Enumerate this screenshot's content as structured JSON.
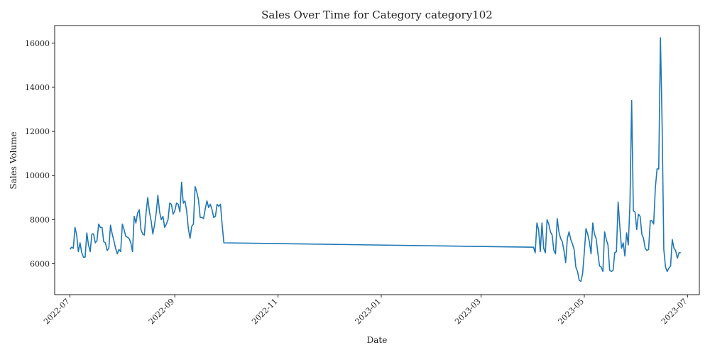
{
  "chart_data": {
    "type": "line",
    "title": "Sales Over Time for Category category102",
    "xlabel": "Date",
    "ylabel": "Sales Volume",
    "xlim": [
      "2022-06-22",
      "2023-07-08"
    ],
    "ylim": [
      4600,
      16800
    ],
    "grid": false,
    "x_ticks": [
      "2022-07",
      "2022-09",
      "2022-11",
      "2023-01",
      "2023-03",
      "2023-05",
      "2023-07"
    ],
    "y_ticks": [
      6000,
      8000,
      10000,
      12000,
      14000,
      16000
    ],
    "series": [
      {
        "color": "#1f77b4",
        "points": [
          [
            "2022-07-01",
            6650
          ],
          [
            "2022-07-02",
            6750
          ],
          [
            "2022-07-03",
            6700
          ],
          [
            "2022-07-04",
            7650
          ],
          [
            "2022-07-05",
            7300
          ],
          [
            "2022-07-06",
            6550
          ],
          [
            "2022-07-07",
            6950
          ],
          [
            "2022-07-08",
            6500
          ],
          [
            "2022-07-09",
            6300
          ],
          [
            "2022-07-10",
            6300
          ],
          [
            "2022-07-11",
            7400
          ],
          [
            "2022-07-12",
            6850
          ],
          [
            "2022-07-13",
            6550
          ],
          [
            "2022-07-14",
            7350
          ],
          [
            "2022-07-15",
            7350
          ],
          [
            "2022-07-16",
            6950
          ],
          [
            "2022-07-17",
            7050
          ],
          [
            "2022-07-18",
            7800
          ],
          [
            "2022-07-19",
            7650
          ],
          [
            "2022-07-20",
            7650
          ],
          [
            "2022-07-21",
            7000
          ],
          [
            "2022-07-22",
            6950
          ],
          [
            "2022-07-23",
            6600
          ],
          [
            "2022-07-24",
            6700
          ],
          [
            "2022-07-25",
            7750
          ],
          [
            "2022-07-26",
            7350
          ],
          [
            "2022-07-27",
            7050
          ],
          [
            "2022-07-28",
            6700
          ],
          [
            "2022-07-29",
            6450
          ],
          [
            "2022-07-30",
            6650
          ],
          [
            "2022-07-31",
            6550
          ],
          [
            "2022-08-01",
            7800
          ],
          [
            "2022-08-02",
            7550
          ],
          [
            "2022-08-03",
            7250
          ],
          [
            "2022-08-04",
            7200
          ],
          [
            "2022-08-05",
            7150
          ],
          [
            "2022-08-06",
            6950
          ],
          [
            "2022-08-07",
            6550
          ],
          [
            "2022-08-08",
            8150
          ],
          [
            "2022-08-09",
            7850
          ],
          [
            "2022-08-10",
            8300
          ],
          [
            "2022-08-11",
            8450
          ],
          [
            "2022-08-12",
            7550
          ],
          [
            "2022-08-13",
            7350
          ],
          [
            "2022-08-14",
            7300
          ],
          [
            "2022-08-15",
            8300
          ],
          [
            "2022-08-16",
            9000
          ],
          [
            "2022-08-17",
            8350
          ],
          [
            "2022-08-18",
            7950
          ],
          [
            "2022-08-19",
            7350
          ],
          [
            "2022-08-20",
            7750
          ],
          [
            "2022-08-21",
            8300
          ],
          [
            "2022-08-22",
            9100
          ],
          [
            "2022-08-23",
            8350
          ],
          [
            "2022-08-24",
            8000
          ],
          [
            "2022-08-25",
            8150
          ],
          [
            "2022-08-26",
            7650
          ],
          [
            "2022-08-27",
            7800
          ],
          [
            "2022-08-28",
            8000
          ],
          [
            "2022-08-29",
            8750
          ],
          [
            "2022-08-30",
            8700
          ],
          [
            "2022-08-31",
            8250
          ],
          [
            "2022-09-01",
            8400
          ],
          [
            "2022-09-02",
            8750
          ],
          [
            "2022-09-03",
            8700
          ],
          [
            "2022-09-04",
            8350
          ],
          [
            "2022-09-05",
            9700
          ],
          [
            "2022-09-06",
            8750
          ],
          [
            "2022-09-07",
            8850
          ],
          [
            "2022-09-08",
            8400
          ],
          [
            "2022-09-09",
            7600
          ],
          [
            "2022-09-10",
            7150
          ],
          [
            "2022-09-11",
            7700
          ],
          [
            "2022-09-12",
            7800
          ],
          [
            "2022-09-13",
            9500
          ],
          [
            "2022-09-14",
            9250
          ],
          [
            "2022-09-15",
            8900
          ],
          [
            "2022-09-16",
            8100
          ],
          [
            "2022-09-17",
            8100
          ],
          [
            "2022-09-18",
            8050
          ],
          [
            "2022-09-19",
            8500
          ],
          [
            "2022-09-20",
            8850
          ],
          [
            "2022-09-21",
            8550
          ],
          [
            "2022-09-22",
            8700
          ],
          [
            "2022-09-23",
            8450
          ],
          [
            "2022-09-24",
            8100
          ],
          [
            "2022-09-25",
            8150
          ],
          [
            "2022-09-26",
            8700
          ],
          [
            "2022-09-27",
            8600
          ],
          [
            "2022-09-28",
            8700
          ],
          [
            "2022-09-29",
            7750
          ],
          [
            "2022-09-30",
            6950
          ],
          [
            "2023-04-01",
            6750
          ],
          [
            "2023-04-02",
            6500
          ],
          [
            "2023-04-03",
            7850
          ],
          [
            "2023-04-04",
            7550
          ],
          [
            "2023-04-05",
            6550
          ],
          [
            "2023-04-06",
            7850
          ],
          [
            "2023-04-07",
            6700
          ],
          [
            "2023-04-08",
            6500
          ],
          [
            "2023-04-09",
            8000
          ],
          [
            "2023-04-10",
            7800
          ],
          [
            "2023-04-11",
            7450
          ],
          [
            "2023-04-12",
            7300
          ],
          [
            "2023-04-13",
            6600
          ],
          [
            "2023-04-14",
            6450
          ],
          [
            "2023-04-15",
            8050
          ],
          [
            "2023-04-16",
            7450
          ],
          [
            "2023-04-17",
            7150
          ],
          [
            "2023-04-18",
            7000
          ],
          [
            "2023-04-19",
            6600
          ],
          [
            "2023-04-20",
            6050
          ],
          [
            "2023-04-21",
            7150
          ],
          [
            "2023-04-22",
            7450
          ],
          [
            "2023-04-23",
            7100
          ],
          [
            "2023-04-24",
            6900
          ],
          [
            "2023-04-25",
            6650
          ],
          [
            "2023-04-26",
            5850
          ],
          [
            "2023-04-27",
            5650
          ],
          [
            "2023-04-28",
            5250
          ],
          [
            "2023-04-29",
            5200
          ],
          [
            "2023-04-30",
            5550
          ],
          [
            "2023-05-01",
            6500
          ],
          [
            "2023-05-02",
            7600
          ],
          [
            "2023-05-03",
            7350
          ],
          [
            "2023-05-04",
            7000
          ],
          [
            "2023-05-05",
            6450
          ],
          [
            "2023-05-06",
            7850
          ],
          [
            "2023-05-07",
            7350
          ],
          [
            "2023-05-08",
            7150
          ],
          [
            "2023-05-09",
            6500
          ],
          [
            "2023-05-10",
            5900
          ],
          [
            "2023-05-11",
            5850
          ],
          [
            "2023-05-12",
            5650
          ],
          [
            "2023-05-13",
            7450
          ],
          [
            "2023-05-14",
            7100
          ],
          [
            "2023-05-15",
            6850
          ],
          [
            "2023-05-16",
            5700
          ],
          [
            "2023-05-17",
            5650
          ],
          [
            "2023-05-18",
            5700
          ],
          [
            "2023-05-19",
            6500
          ],
          [
            "2023-05-20",
            6550
          ],
          [
            "2023-05-21",
            8800
          ],
          [
            "2023-05-22",
            7700
          ],
          [
            "2023-05-23",
            6700
          ],
          [
            "2023-05-24",
            6950
          ],
          [
            "2023-05-25",
            6350
          ],
          [
            "2023-05-26",
            7400
          ],
          [
            "2023-05-27",
            6850
          ],
          [
            "2023-05-28",
            8750
          ],
          [
            "2023-05-29",
            13400
          ],
          [
            "2023-05-30",
            8400
          ],
          [
            "2023-05-31",
            8350
          ],
          [
            "2023-06-01",
            7550
          ],
          [
            "2023-06-02",
            8250
          ],
          [
            "2023-06-03",
            8150
          ],
          [
            "2023-06-04",
            7350
          ],
          [
            "2023-06-05",
            7150
          ],
          [
            "2023-06-06",
            6700
          ],
          [
            "2023-06-07",
            6600
          ],
          [
            "2023-06-08",
            6650
          ],
          [
            "2023-06-09",
            7950
          ],
          [
            "2023-06-10",
            7950
          ],
          [
            "2023-06-11",
            7800
          ],
          [
            "2023-06-12",
            9450
          ],
          [
            "2023-06-13",
            10300
          ],
          [
            "2023-06-14",
            10300
          ],
          [
            "2023-06-15",
            16250
          ],
          [
            "2023-06-16",
            12300
          ],
          [
            "2023-06-17",
            6650
          ],
          [
            "2023-06-18",
            5850
          ],
          [
            "2023-06-19",
            5650
          ],
          [
            "2023-06-20",
            5800
          ],
          [
            "2023-06-21",
            5900
          ],
          [
            "2023-06-22",
            7100
          ],
          [
            "2023-06-23",
            6700
          ],
          [
            "2023-06-24",
            6600
          ],
          [
            "2023-06-25",
            6250
          ],
          [
            "2023-06-26",
            6500
          ],
          [
            "2023-06-27",
            6500
          ]
        ]
      }
    ]
  }
}
